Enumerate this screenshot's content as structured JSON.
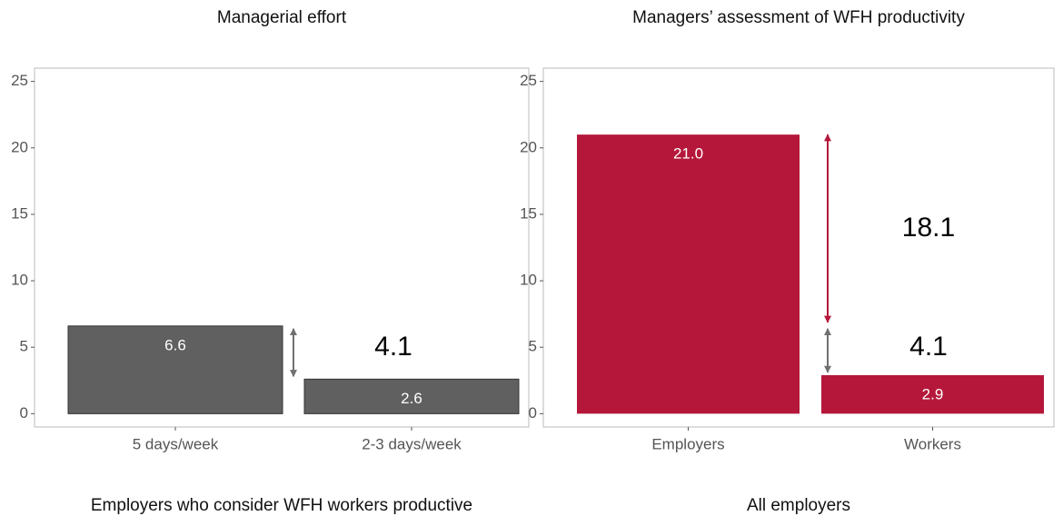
{
  "chart_data": [
    {
      "type": "bar",
      "title": "Managerial effort",
      "categories": [
        "5 days/week",
        "2-3 days/week"
      ],
      "values": [
        6.6,
        2.6
      ],
      "value_labels": [
        "6.6",
        "2.6"
      ],
      "color": "#606060",
      "ylim": [
        -1,
        26
      ],
      "yticks": [
        0,
        5,
        10,
        15,
        20,
        25
      ],
      "annotations": [
        "4.1"
      ],
      "caption": "Employers who consider WFH workers productive"
    },
    {
      "type": "bar",
      "title": "Managers’ assessment of WFH productivity",
      "categories": [
        "Employers",
        "Workers"
      ],
      "values": [
        21.0,
        2.9
      ],
      "value_labels": [
        "21.0",
        "2.9"
      ],
      "color": "#b5173a",
      "ylim": [
        -1,
        26
      ],
      "yticks": [
        0,
        5,
        10,
        15,
        20,
        25
      ],
      "annotations": [
        "18.1",
        "4.1"
      ],
      "caption": "All employers"
    }
  ]
}
